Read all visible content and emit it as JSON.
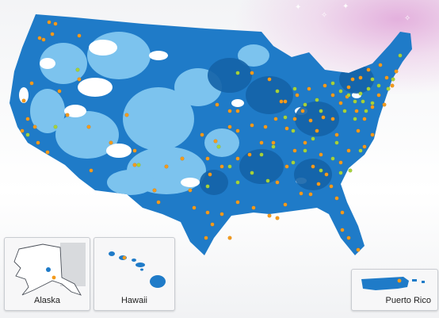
{
  "insets": {
    "alaska": {
      "label": "Alaska"
    },
    "hawaii": {
      "label": "Hawaii"
    },
    "puerto_rico": {
      "label": "Puerto Rico"
    }
  },
  "legend_colors": {
    "coverage_primary": "#1f7bc8",
    "coverage_dark": "#1463a8",
    "coverage_light": "#7cc3ee",
    "marker_orange": "#f39a1c",
    "marker_green": "#a6d13a"
  },
  "markers": {
    "orange_count_visible": 110,
    "green_count_visible": 45
  }
}
